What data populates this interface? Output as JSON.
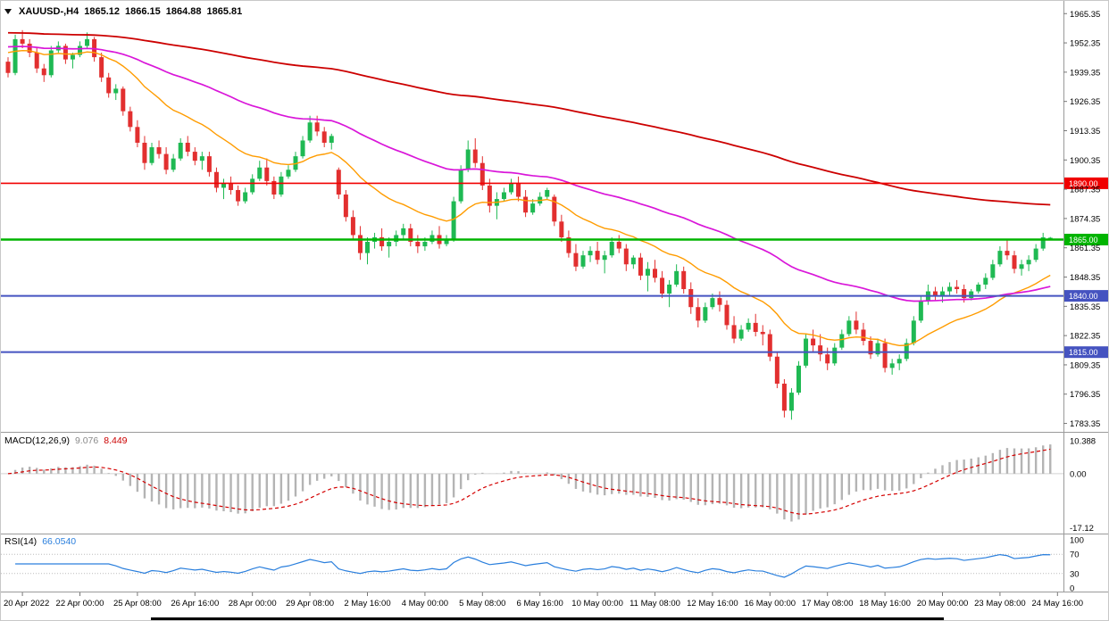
{
  "title": {
    "symbol_period": "XAUUSD-,H4",
    "open": "1865.12",
    "high": "1866.15",
    "low": "1864.88",
    "close": "1865.81"
  },
  "colors": {
    "bull": "#1fb953",
    "bear": "#e22f2f",
    "divider": "#9a9a9a",
    "background": "#ffffff"
  },
  "price_axis": {
    "labels": [
      "1965.35",
      "1952.35",
      "1939.35",
      "1926.35",
      "1913.35",
      "1900.35",
      "1887.35",
      "1874.35",
      "1861.35",
      "1848.35",
      "1835.35",
      "1822.35",
      "1809.35",
      "1796.35",
      "1783.35"
    ]
  },
  "hlines": [
    {
      "price": 1890.0,
      "label": "1890.00",
      "color": "#f00000",
      "width": 1.6
    },
    {
      "price": 1865.0,
      "label": "1865.00",
      "color": "#00b400",
      "width": 2.6
    },
    {
      "price": 1840.0,
      "label": "1840.00",
      "color": "#4553c0",
      "width": 2
    },
    {
      "price": 1815.0,
      "label": "1815.00",
      "color": "#4553c0",
      "width": 2
    }
  ],
  "time_axis": {
    "labels": [
      {
        "text": "20 Apr 2022",
        "slot": 2
      },
      {
        "text": "22 Apr 00:00",
        "slot": 10
      },
      {
        "text": "25 Apr 08:00",
        "slot": 18
      },
      {
        "text": "26 Apr 16:00",
        "slot": 26
      },
      {
        "text": "28 Apr 00:00",
        "slot": 34
      },
      {
        "text": "29 Apr 08:00",
        "slot": 42
      },
      {
        "text": "2 May 16:00",
        "slot": 50
      },
      {
        "text": "4 May 00:00",
        "slot": 58
      },
      {
        "text": "5 May 08:00",
        "slot": 66
      },
      {
        "text": "6 May 16:00",
        "slot": 74
      },
      {
        "text": "10 May 00:00",
        "slot": 82
      },
      {
        "text": "11 May 08:00",
        "slot": 90
      },
      {
        "text": "12 May 16:00",
        "slot": 98
      },
      {
        "text": "16 May 00:00",
        "slot": 106
      },
      {
        "text": "17 May 08:00",
        "slot": 114
      },
      {
        "text": "18 May 16:00",
        "slot": 122
      },
      {
        "text": "20 May 00:00",
        "slot": 130
      },
      {
        "text": "23 May 08:00",
        "slot": 138
      },
      {
        "text": "24 May 16:00",
        "slot": 146
      }
    ]
  },
  "macd": {
    "label": "MACD(12,26,9)",
    "main_value": "9.076",
    "signal_value": "8.449",
    "axis_labels": [
      {
        "text": "10.388",
        "value": 10.388
      },
      {
        "text": "0.00",
        "value": 0
      },
      {
        "text": "-17.12",
        "value": -17.12
      }
    ],
    "colors": {
      "histogram": "#b4b4b4",
      "signal": "#d40000"
    }
  },
  "rsi": {
    "label": "RSI(14)",
    "value": "66.0540",
    "period": 14,
    "color": "#2a7fdd",
    "levels": [
      70,
      30
    ],
    "axis_labels": [
      {
        "text": "100",
        "value": 100
      },
      {
        "text": "70",
        "value": 70
      },
      {
        "text": "30",
        "value": 30
      },
      {
        "text": "0",
        "value": 0
      }
    ]
  },
  "chart_data": {
    "type": "candlestick",
    "symbol": "XAUUSD-",
    "timeframe": "H4",
    "ylim": [
      1780,
      1971
    ],
    "macd_ylim": [
      -19,
      13
    ],
    "rsi_ylim": [
      0,
      100
    ],
    "candles": [
      [
        1944,
        1946,
        1937,
        1939
      ],
      [
        1939,
        1956,
        1938,
        1954
      ],
      [
        1954,
        1958,
        1950,
        1952
      ],
      [
        1952,
        1954,
        1946,
        1948
      ],
      [
        1948,
        1950,
        1939,
        1941
      ],
      [
        1941,
        1943,
        1935,
        1938
      ],
      [
        1938,
        1951,
        1937,
        1949
      ],
      [
        1949,
        1953,
        1948,
        1951
      ],
      [
        1951,
        1952,
        1943,
        1945
      ],
      [
        1945,
        1948,
        1941,
        1947
      ],
      [
        1947,
        1953,
        1946,
        1951
      ],
      [
        1951,
        1957,
        1950,
        1954
      ],
      [
        1954,
        1955,
        1944,
        1946
      ],
      [
        1946,
        1948,
        1935,
        1937
      ],
      [
        1937,
        1939,
        1928,
        1930
      ],
      [
        1930,
        1934,
        1927,
        1932
      ],
      [
        1932,
        1933,
        1920,
        1922
      ],
      [
        1922,
        1924,
        1913,
        1915
      ],
      [
        1915,
        1918,
        1906,
        1908
      ],
      [
        1908,
        1911,
        1896,
        1899
      ],
      [
        1899,
        1908,
        1898,
        1906
      ],
      [
        1906,
        1909,
        1901,
        1903
      ],
      [
        1903,
        1906,
        1894,
        1896
      ],
      [
        1896,
        1903,
        1895,
        1901
      ],
      [
        1901,
        1910,
        1900,
        1908
      ],
      [
        1908,
        1911,
        1902,
        1904
      ],
      [
        1904,
        1906,
        1898,
        1900
      ],
      [
        1900,
        1904,
        1896,
        1902
      ],
      [
        1902,
        1904,
        1893,
        1895
      ],
      [
        1895,
        1897,
        1886,
        1888
      ],
      [
        1888,
        1892,
        1883,
        1890
      ],
      [
        1890,
        1893,
        1885,
        1887
      ],
      [
        1887,
        1889,
        1880,
        1882
      ],
      [
        1882,
        1888,
        1881,
        1886
      ],
      [
        1886,
        1894,
        1885,
        1892
      ],
      [
        1892,
        1900,
        1891,
        1897
      ],
      [
        1897,
        1901,
        1889,
        1891
      ],
      [
        1891,
        1893,
        1883,
        1885
      ],
      [
        1885,
        1895,
        1884,
        1893
      ],
      [
        1893,
        1898,
        1892,
        1896
      ],
      [
        1896,
        1904,
        1895,
        1902
      ],
      [
        1902,
        1911,
        1901,
        1909
      ],
      [
        1909,
        1920,
        1908,
        1917
      ],
      [
        1917,
        1920,
        1911,
        1913
      ],
      [
        1913,
        1915,
        1906,
        1908
      ],
      [
        1908,
        1912,
        1905,
        1911
      ],
      [
        1896,
        1897,
        1883,
        1885
      ],
      [
        1885,
        1887,
        1873,
        1875
      ],
      [
        1875,
        1878,
        1865,
        1867
      ],
      [
        1867,
        1871,
        1856,
        1859
      ],
      [
        1859,
        1866,
        1854,
        1864
      ],
      [
        1864,
        1868,
        1861,
        1866
      ],
      [
        1866,
        1870,
        1860,
        1862
      ],
      [
        1862,
        1866,
        1857,
        1864
      ],
      [
        1864,
        1869,
        1862,
        1867
      ],
      [
        1867,
        1872,
        1865,
        1870
      ],
      [
        1870,
        1872,
        1862,
        1864
      ],
      [
        1864,
        1867,
        1859,
        1862
      ],
      [
        1862,
        1866,
        1860,
        1864
      ],
      [
        1864,
        1869,
        1863,
        1867
      ],
      [
        1867,
        1871,
        1861,
        1863
      ],
      [
        1863,
        1867,
        1862,
        1865
      ],
      [
        1865,
        1884,
        1864,
        1882
      ],
      [
        1882,
        1898,
        1881,
        1896
      ],
      [
        1896,
        1909,
        1895,
        1905
      ],
      [
        1905,
        1910,
        1897,
        1899
      ],
      [
        1899,
        1902,
        1887,
        1889
      ],
      [
        1889,
        1892,
        1877,
        1880
      ],
      [
        1880,
        1886,
        1874,
        1883
      ],
      [
        1883,
        1888,
        1882,
        1886
      ],
      [
        1886,
        1892,
        1885,
        1890
      ],
      [
        1890,
        1893,
        1882,
        1884
      ],
      [
        1884,
        1887,
        1875,
        1877
      ],
      [
        1877,
        1883,
        1876,
        1881
      ],
      [
        1881,
        1886,
        1880,
        1884
      ],
      [
        1884,
        1888,
        1883,
        1887
      ],
      [
        1884,
        1885,
        1871,
        1873
      ],
      [
        1873,
        1876,
        1864,
        1866
      ],
      [
        1866,
        1869,
        1857,
        1859
      ],
      [
        1859,
        1863,
        1851,
        1853
      ],
      [
        1853,
        1860,
        1852,
        1858
      ],
      [
        1858,
        1862,
        1855,
        1860
      ],
      [
        1860,
        1864,
        1854,
        1856
      ],
      [
        1856,
        1860,
        1850,
        1858
      ],
      [
        1858,
        1866,
        1857,
        1864
      ],
      [
        1864,
        1867,
        1859,
        1861
      ],
      [
        1861,
        1863,
        1851,
        1854
      ],
      [
        1854,
        1858,
        1852,
        1857
      ],
      [
        1857,
        1859,
        1847,
        1849
      ],
      [
        1849,
        1855,
        1842,
        1852
      ],
      [
        1852,
        1856,
        1846,
        1848
      ],
      [
        1848,
        1851,
        1839,
        1841
      ],
      [
        1841,
        1847,
        1835,
        1845
      ],
      [
        1845,
        1854,
        1844,
        1851
      ],
      [
        1851,
        1853,
        1841,
        1843
      ],
      [
        1843,
        1846,
        1832,
        1835
      ],
      [
        1835,
        1839,
        1826,
        1829
      ],
      [
        1829,
        1837,
        1828,
        1835
      ],
      [
        1835,
        1841,
        1834,
        1839
      ],
      [
        1839,
        1842,
        1833,
        1836
      ],
      [
        1836,
        1838,
        1825,
        1827
      ],
      [
        1827,
        1831,
        1819,
        1821
      ],
      [
        1821,
        1827,
        1820,
        1825
      ],
      [
        1825,
        1830,
        1824,
        1828
      ],
      [
        1828,
        1832,
        1822,
        1824
      ],
      [
        1824,
        1827,
        1818,
        1823
      ],
      [
        1823,
        1825,
        1811,
        1813
      ],
      [
        1813,
        1815,
        1799,
        1801
      ],
      [
        1801,
        1803,
        1786,
        1789
      ],
      [
        1789,
        1799,
        1785,
        1797
      ],
      [
        1797,
        1811,
        1796,
        1809
      ],
      [
        1809,
        1823,
        1808,
        1821
      ],
      [
        1821,
        1825,
        1815,
        1818
      ],
      [
        1818,
        1823,
        1811,
        1814
      ],
      [
        1814,
        1817,
        1807,
        1810
      ],
      [
        1810,
        1819,
        1809,
        1817
      ],
      [
        1817,
        1825,
        1816,
        1823
      ],
      [
        1823,
        1831,
        1822,
        1829
      ],
      [
        1829,
        1833,
        1823,
        1825
      ],
      [
        1825,
        1828,
        1818,
        1820
      ],
      [
        1820,
        1822,
        1812,
        1814
      ],
      [
        1814,
        1821,
        1813,
        1819
      ],
      [
        1819,
        1821,
        1806,
        1808
      ],
      [
        1808,
        1812,
        1805,
        1810
      ],
      [
        1810,
        1814,
        1807,
        1812
      ],
      [
        1812,
        1821,
        1811,
        1819
      ],
      [
        1819,
        1831,
        1818,
        1829
      ],
      [
        1829,
        1840,
        1828,
        1838
      ],
      [
        1838,
        1845,
        1836,
        1842
      ],
      [
        1842,
        1844,
        1838,
        1840
      ],
      [
        1840,
        1844,
        1837,
        1842
      ],
      [
        1842,
        1846,
        1840,
        1844
      ],
      [
        1844,
        1847,
        1841,
        1843
      ],
      [
        1843,
        1845,
        1837,
        1839
      ],
      [
        1839,
        1843,
        1838,
        1842
      ],
      [
        1842,
        1846,
        1841,
        1845
      ],
      [
        1845,
        1850,
        1843,
        1848
      ],
      [
        1848,
        1856,
        1847,
        1854
      ],
      [
        1854,
        1862,
        1853,
        1860
      ],
      [
        1860,
        1865,
        1856,
        1858
      ],
      [
        1858,
        1860,
        1850,
        1852
      ],
      [
        1852,
        1856,
        1849,
        1854
      ],
      [
        1854,
        1858,
        1851,
        1856
      ],
      [
        1856,
        1863,
        1855,
        1861
      ],
      [
        1861,
        1868,
        1860,
        1866
      ],
      [
        1865.12,
        1866.15,
        1864.88,
        1865.81
      ]
    ],
    "moving_averages": [
      {
        "name": "fast",
        "period": 20,
        "color": "#ff9c00",
        "width": 1.4,
        "seed": 1949
      },
      {
        "name": "medium",
        "period": 60,
        "color": "#d916d9",
        "width": 1.7,
        "seed": 1951
      },
      {
        "name": "slow",
        "period": 200,
        "color": "#cc0000",
        "width": 1.8,
        "seed": 1957
      }
    ],
    "macd_params": {
      "fast": 12,
      "slow": 26,
      "signal": 9
    },
    "rsi_period": 14
  }
}
